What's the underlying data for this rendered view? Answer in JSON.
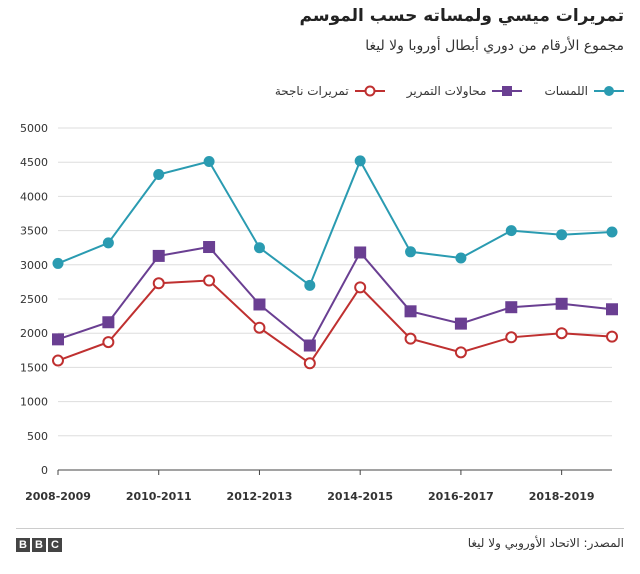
{
  "header": {
    "title": "تمريرات ميسي ولمساته حسب الموسم",
    "subtitle": "مجموع الأرقام من دوري أبطال أوروبا ولا ليغا"
  },
  "footer": {
    "source": "المصدر: الاتحاد الأوروبي ولا ليغا",
    "logo_letters": [
      "B",
      "B",
      "C"
    ]
  },
  "chart_data": {
    "type": "line",
    "title": "تمريرات ميسي ولمساته حسب الموسم",
    "subtitle": "مجموع الأرقام من دوري أبطال أوروبا ولا ليغا",
    "x": [
      0,
      1,
      2,
      3,
      4,
      5,
      6,
      7,
      8,
      9,
      10,
      11
    ],
    "xtick_labels": [
      {
        "x": 0,
        "label": "2008-2009"
      },
      {
        "x": 2,
        "label": "2010-2011"
      },
      {
        "x": 4,
        "label": "2012-2013"
      },
      {
        "x": 6,
        "label": "2014-2015"
      },
      {
        "x": 8,
        "label": "2016-2017"
      },
      {
        "x": 10,
        "label": "2018-2019"
      }
    ],
    "ylim": [
      0,
      5000
    ],
    "yticks": [
      0,
      500,
      1000,
      1500,
      2000,
      2500,
      3000,
      3500,
      4000,
      4500,
      5000
    ],
    "grid": true,
    "legend_position": "top-right",
    "series": [
      {
        "name": "اللمسات",
        "color": "#2a9bb1",
        "marker": "circle",
        "values": [
          3020,
          3320,
          4320,
          4510,
          3250,
          2700,
          4520,
          3190,
          3100,
          3500,
          3440,
          3480
        ]
      },
      {
        "name": "محاولات التمرير",
        "color": "#6a3f92",
        "marker": "square",
        "values": [
          1910,
          2160,
          3130,
          3260,
          2420,
          1820,
          3180,
          2320,
          2140,
          2380,
          2430,
          2350
        ]
      },
      {
        "name": "تمريرات ناجحة",
        "color": "#bf3030",
        "marker": "hollow-circle",
        "values": [
          1600,
          1870,
          2730,
          2770,
          2080,
          1560,
          2670,
          1920,
          1720,
          1940,
          2000,
          1950
        ]
      }
    ]
  }
}
